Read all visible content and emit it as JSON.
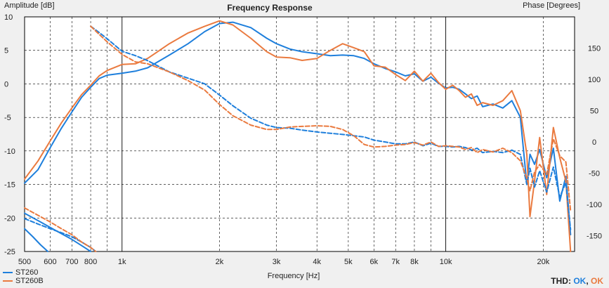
{
  "chart_data": {
    "type": "line",
    "title": "Frequency Response",
    "xlabel": "Frequency [Hz]",
    "ylabel_left": "Amplitude [dB]",
    "ylabel_right": "Phase [Degrees]",
    "x_scale": "log",
    "xlim": [
      500,
      25000
    ],
    "ylim_left": [
      -25,
      10
    ],
    "ylim_right": [
      -175,
      200
    ],
    "x_ticks": [
      500,
      600,
      700,
      800,
      1000,
      2000,
      3000,
      4000,
      5000,
      6000,
      7000,
      8000,
      10000,
      20000
    ],
    "x_tick_labels": [
      "500",
      "600",
      "700",
      "800",
      "1k",
      "2k",
      "3k",
      "4k",
      "5k",
      "6k",
      "7k",
      "8k",
      "10k",
      "20k"
    ],
    "y_left_ticks": [
      10,
      5,
      0,
      -5,
      -10,
      -15,
      -20,
      -25
    ],
    "y_right_ticks": [
      150,
      100,
      50,
      0,
      -50,
      -100,
      -150
    ],
    "grid": true,
    "series": [
      {
        "name": "ST260",
        "color": "#1e7fdc",
        "axis": "amplitude",
        "style": "solid",
        "x": [
          500,
          550,
          600,
          650,
          700,
          750,
          800,
          850,
          900,
          1000,
          1100,
          1200,
          1400,
          1600,
          1800,
          2000,
          2200,
          2500,
          2800,
          3000,
          3300,
          3600,
          4000,
          4400,
          4800,
          5200,
          5600,
          6000,
          6500,
          7000,
          7500,
          8000,
          8500,
          9000,
          9500,
          10000,
          10500,
          11000,
          11500,
          12000,
          12500,
          13000,
          14000,
          15000,
          16000,
          17000,
          17800,
          18200,
          18800,
          19500,
          20500,
          21500,
          22500,
          23500,
          24300
        ],
        "y": [
          -14.8,
          -12.8,
          -9.5,
          -6.6,
          -4.2,
          -2.0,
          -0.5,
          0.8,
          1.3,
          1.6,
          1.9,
          2.4,
          4.3,
          6.0,
          7.8,
          9.0,
          9.2,
          8.4,
          6.8,
          6.0,
          5.2,
          4.8,
          4.5,
          4.2,
          4.3,
          4.2,
          3.8,
          3.0,
          2.3,
          1.8,
          1.2,
          1.5,
          0.4,
          1.0,
          0.1,
          -0.6,
          -0.5,
          -0.8,
          -1.5,
          -2.2,
          -1.8,
          -3.4,
          -3.0,
          -3.6,
          -2.5,
          -5.0,
          -15.0,
          -10.5,
          -12.0,
          -9.8,
          -14.0,
          -9.6,
          -17.5,
          -13.8,
          -22.5
        ]
      },
      {
        "name": "ST260B",
        "color": "#ea7a3f",
        "axis": "amplitude",
        "style": "solid",
        "x": [
          500,
          550,
          600,
          650,
          700,
          750,
          800,
          850,
          900,
          1000,
          1100,
          1200,
          1400,
          1600,
          1800,
          2000,
          2200,
          2500,
          2800,
          3000,
          3300,
          3600,
          4000,
          4400,
          4800,
          5200,
          5600,
          6000,
          6500,
          7000,
          7500,
          8000,
          8500,
          9000,
          9500,
          10000,
          10500,
          11000,
          11500,
          12000,
          12500,
          13000,
          14000,
          15000,
          16000,
          17000,
          17800,
          18200,
          18800,
          19500,
          20500,
          21500,
          22500,
          23500,
          24300
        ],
        "y": [
          -14.2,
          -11.5,
          -8.5,
          -5.8,
          -3.6,
          -1.6,
          -0.2,
          1.2,
          2.0,
          2.9,
          3.0,
          3.8,
          6.0,
          7.6,
          8.6,
          9.4,
          8.8,
          6.8,
          4.8,
          4.0,
          3.9,
          3.5,
          3.8,
          5.0,
          6.0,
          5.4,
          4.8,
          2.7,
          2.5,
          1.4,
          0.5,
          1.9,
          0.4,
          1.6,
          0.2,
          -0.8,
          -0.2,
          -1.0,
          -2.0,
          -1.5,
          -3.2,
          -2.8,
          -3.2,
          -2.5,
          -1.0,
          -4.0,
          -10.5,
          -19.8,
          -14.5,
          -8.0,
          -16.5,
          -6.5,
          -11.0,
          -14.5,
          -25.0
        ]
      },
      {
        "name": "ST260",
        "color": "#1e7fdc",
        "axis": "phase",
        "style": "dashed",
        "x": [
          800,
          850,
          900,
          1000,
          1100,
          1200,
          1400,
          1600,
          1800,
          2000,
          2200,
          2500,
          2800,
          3000,
          3300,
          3600,
          4000,
          4400,
          4800,
          5200,
          5600,
          6000,
          6500,
          7000,
          7500,
          8000,
          8500,
          9000,
          9500,
          10000,
          10500,
          11000,
          11500,
          12000,
          12500,
          13000,
          14000,
          15000,
          16000,
          17000,
          17800,
          18200,
          18800,
          19500,
          20500,
          21500,
          22500,
          23500,
          24300
        ],
        "y": [
          185,
          175,
          165,
          145,
          138,
          130,
          112,
          102,
          93,
          75,
          58,
          38,
          27,
          23,
          22,
          19,
          16,
          14,
          12,
          10,
          8,
          3,
          0,
          -3,
          -3,
          0,
          -6,
          -2,
          -7,
          -7,
          -8,
          -7,
          -9,
          -13,
          -10,
          -17,
          -15,
          -17,
          -13,
          -20,
          -68,
          -42,
          -72,
          -46,
          -80,
          -40,
          -88,
          -65,
          -140
        ]
      },
      {
        "name": "ST260B",
        "color": "#ea7a3f",
        "axis": "phase",
        "style": "dashed",
        "x": [
          800,
          850,
          900,
          1000,
          1100,
          1200,
          1400,
          1600,
          1800,
          2000,
          2200,
          2500,
          2800,
          3000,
          3300,
          3600,
          4000,
          4400,
          4800,
          5200,
          5600,
          6000,
          6500,
          7000,
          7500,
          8000,
          8500,
          9000,
          9500,
          10000,
          10500,
          11000,
          11500,
          12000,
          12500,
          13000,
          14000,
          15000,
          16000,
          17000,
          17800,
          18200,
          18800,
          19500,
          20500,
          21500,
          22500,
          23500,
          24300
        ],
        "y": [
          185,
          172,
          160,
          140,
          128,
          125,
          112,
          98,
          83,
          60,
          42,
          27,
          20,
          20,
          24,
          25,
          26,
          25,
          20,
          10,
          -4,
          -8,
          -7,
          -5,
          -4,
          -1,
          -5,
          0,
          -7,
          -6,
          -7,
          -8,
          -12,
          -9,
          -17,
          -12,
          -16,
          -10,
          -17,
          -30,
          -58,
          -78,
          -48,
          -36,
          -52,
          5,
          -22,
          -32,
          -110
        ]
      },
      {
        "name": "ST260",
        "color": "#1e7fdc",
        "axis": "amplitude",
        "style": "solid",
        "x": [
          500,
          560,
          620,
          700,
          760,
          800
        ],
        "y": [
          -19.3,
          -20.6,
          -21.8,
          -23.2,
          -24.3,
          -25.0
        ]
      },
      {
        "name": "ST260",
        "color": "#1e7fdc",
        "axis": "amplitude",
        "style": "dashed",
        "x": [
          500,
          550,
          600,
          650,
          700,
          750,
          800,
          830
        ],
        "y": [
          -20.1,
          -20.9,
          -21.6,
          -22.2,
          -22.8,
          -23.6,
          -24.4,
          -25.0
        ]
      },
      {
        "name": "ST260B",
        "color": "#ea7a3f",
        "axis": "amplitude",
        "style": "dashed",
        "x": [
          500,
          550,
          600,
          650,
          700,
          750,
          800,
          830
        ],
        "y": [
          -18.5,
          -19.6,
          -20.6,
          -21.6,
          -22.5,
          -23.6,
          -24.4,
          -25.0
        ]
      },
      {
        "name": "ST260",
        "color": "#1e7fdc",
        "axis": "amplitude",
        "style": "solid",
        "x": [
          500,
          530,
          560,
          590
        ],
        "y": [
          -21.6,
          -22.8,
          -24.0,
          -25.0
        ]
      }
    ]
  },
  "legend": {
    "items": [
      {
        "label": "ST260",
        "color": "#1e7fdc"
      },
      {
        "label": "ST260B",
        "color": "#ea7a3f"
      }
    ]
  },
  "status": {
    "thd_label": "THD:",
    "ok_1": "OK",
    "separator": ",",
    "ok_2": "OK"
  }
}
